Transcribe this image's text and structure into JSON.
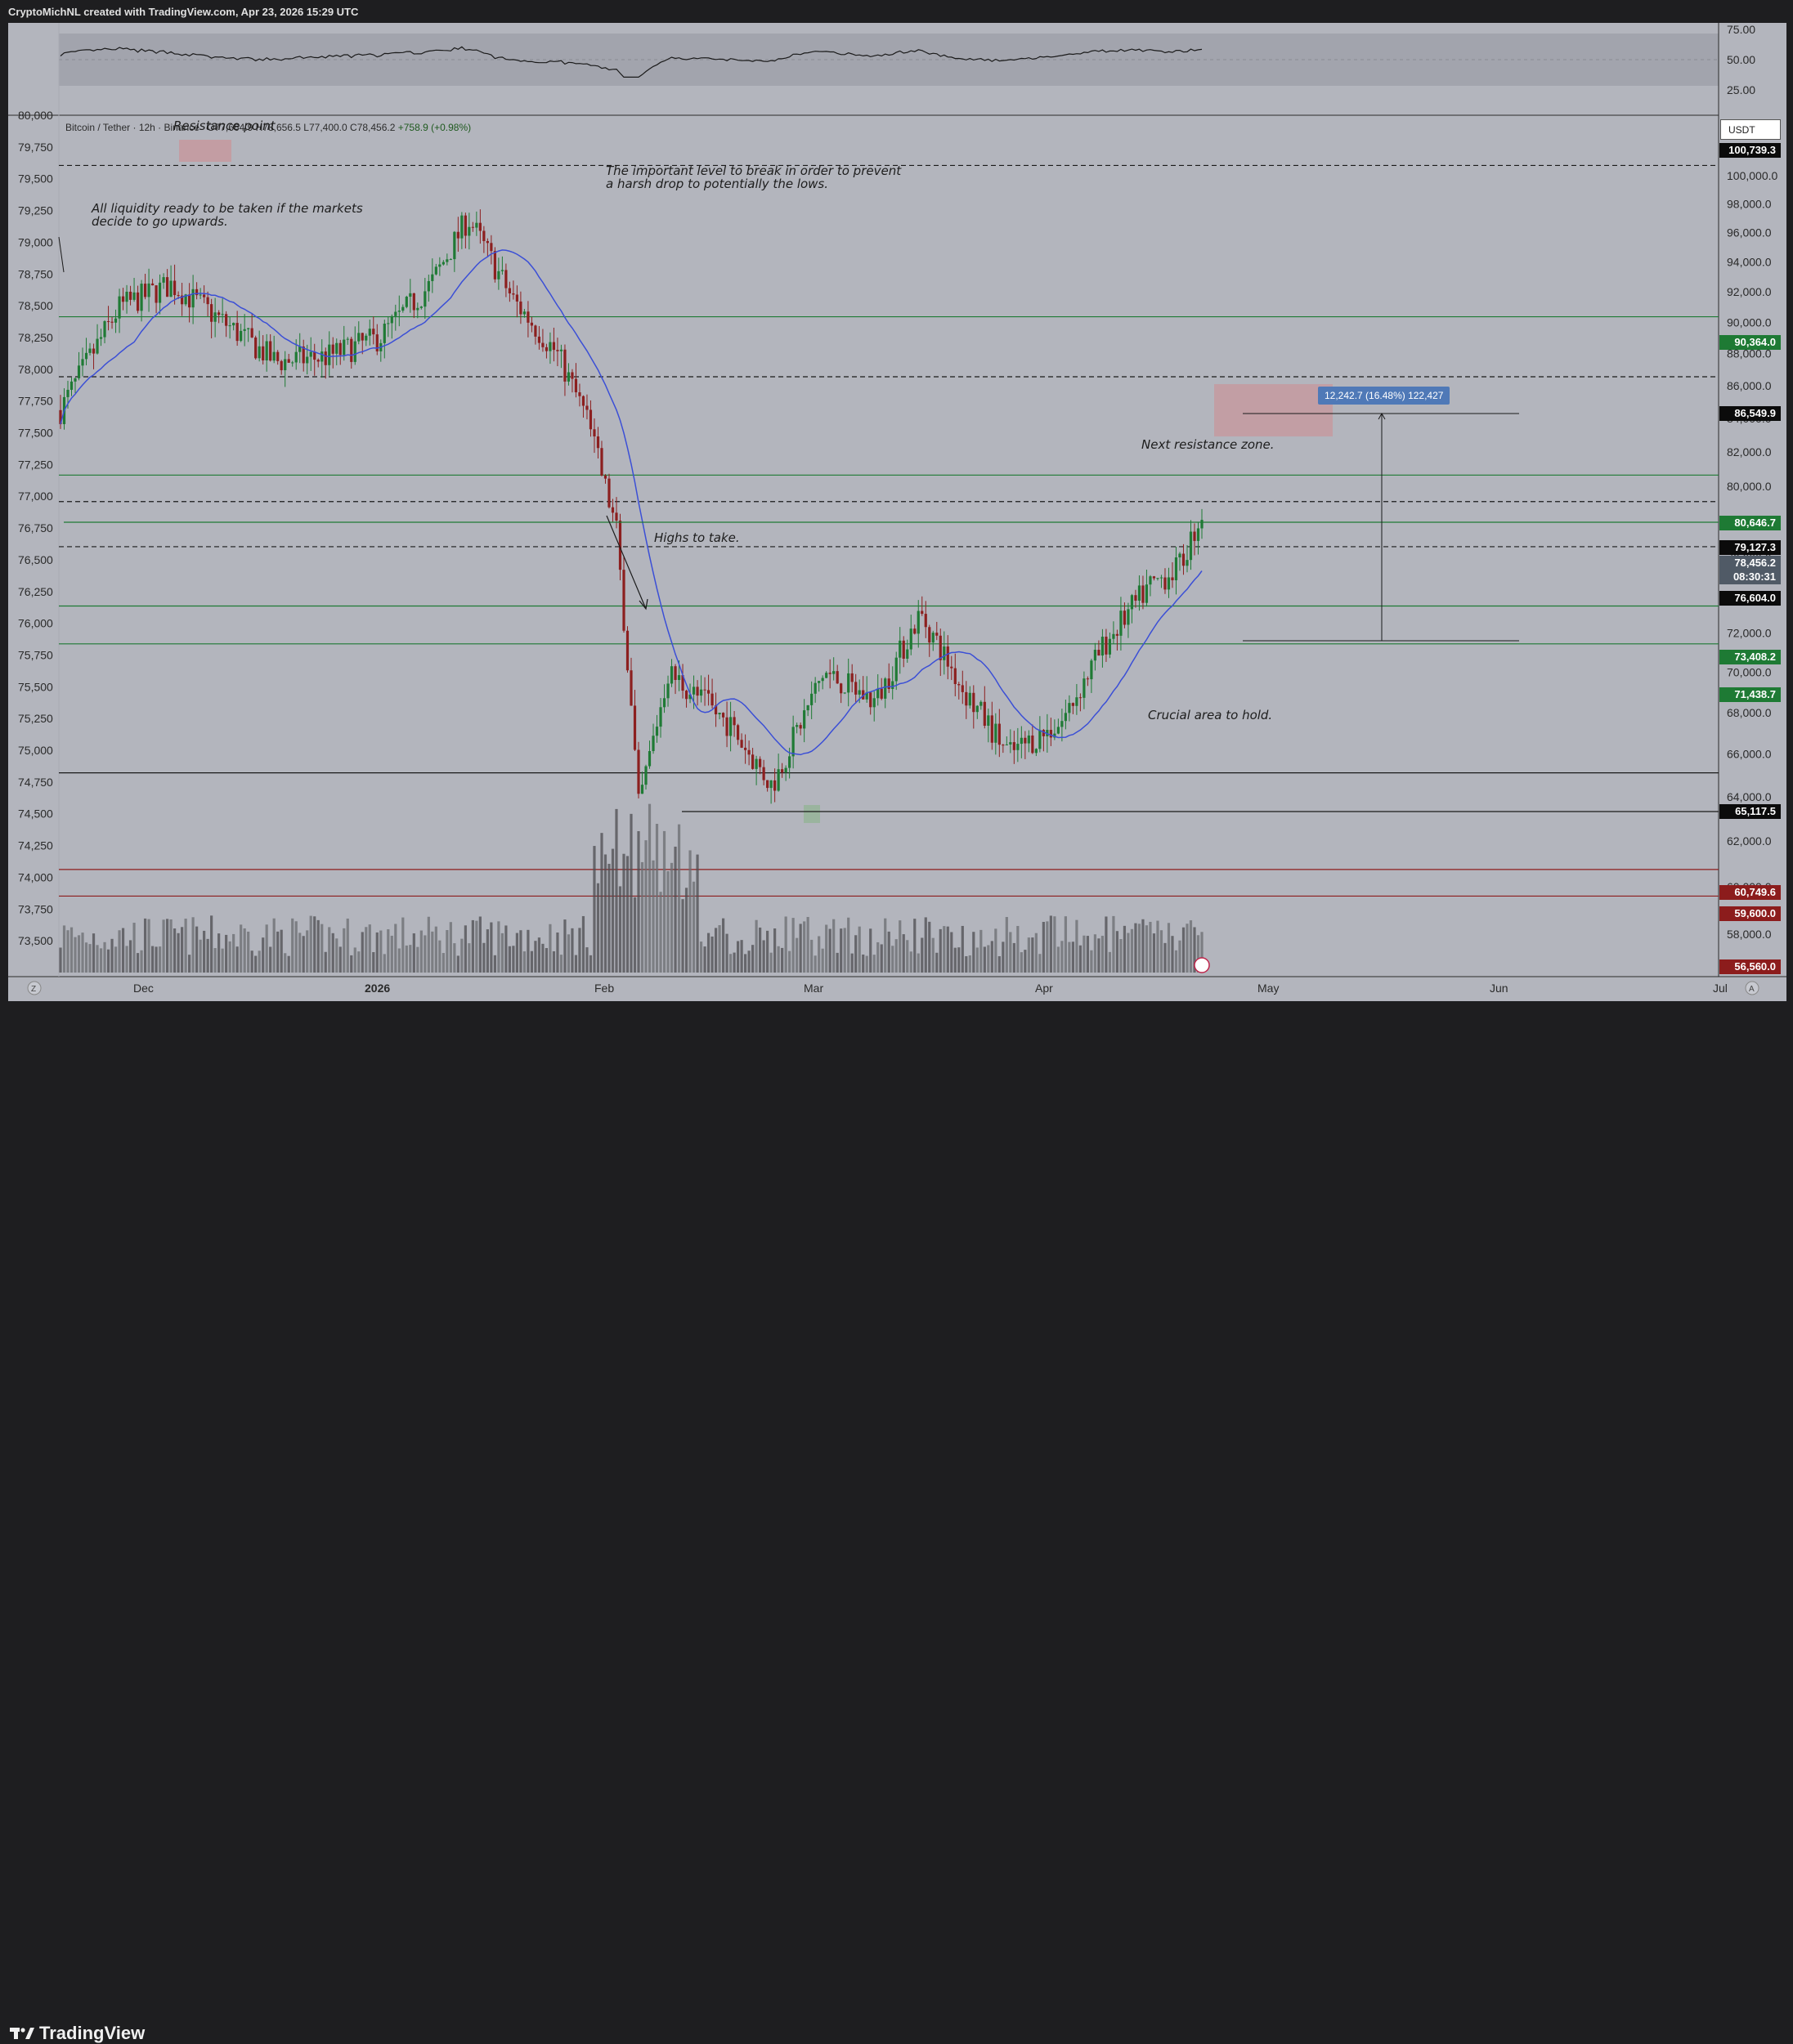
{
  "header": {
    "caption": "CryptoMichNL created with TradingView.com, Apr 23, 2026 15:29 UTC"
  },
  "brand": {
    "name": "TradingView"
  },
  "symbol": {
    "name": "Bitcoin / Tether · 12h · Binance",
    "ohlc": "O77,664.9  H78,656.5  L77,400.0  C78,456.2",
    "change": "+758.9 (+0.98%)"
  },
  "currency": "USDT",
  "rsi_axis": [
    "75.00",
    "50.00",
    "25.00"
  ],
  "left_axis": [
    "80,000",
    "79,750",
    "79,500",
    "79,250",
    "79,000",
    "78,750",
    "78,500",
    "78,250",
    "78,000",
    "77,750",
    "77,500",
    "77,250",
    "77,000",
    "76,750",
    "76,500",
    "76,250",
    "76,000",
    "75,750",
    "75,500",
    "75,250",
    "75,000",
    "74,750",
    "74,500",
    "74,250",
    "74,000",
    "73,750",
    "73,500"
  ],
  "right_axis": [
    "100,000.0",
    "98,000.0",
    "96,000.0",
    "94,000.0",
    "92,000.0",
    "90,000.0",
    "88,000.0",
    "86,000.0",
    "84,000.0",
    "82,000.0",
    "80,000.0",
    "78,000.0",
    "76,000.0",
    "74,000.0",
    "72,000.0",
    "70,000.0",
    "68,000.0",
    "66,000.0",
    "64,000.0",
    "62,000.0",
    "60,000.0",
    "58,000.0"
  ],
  "time_axis": [
    "Dec",
    "2026",
    "Feb",
    "Mar",
    "Apr",
    "May",
    "Jun",
    "Jul"
  ],
  "price_labels": [
    {
      "text": "100,739.3",
      "color": "#0b0b0b"
    },
    {
      "text": "90,364.0",
      "color": "#1e7a34"
    },
    {
      "text": "86,549.9",
      "color": "#0b0b0b"
    },
    {
      "text": "80,646.7",
      "color": "#1e7a34"
    },
    {
      "text": "79,127.3",
      "color": "#0b0b0b"
    },
    {
      "text": "78,456.2",
      "color": "#505a66"
    },
    {
      "text": "08:30:31",
      "color": "#505a66"
    },
    {
      "text": "76,604.0",
      "color": "#0b0b0b"
    },
    {
      "text": "73,408.2",
      "color": "#1e7a34"
    },
    {
      "text": "71,438.7",
      "color": "#1e7a34"
    },
    {
      "text": "65,117.5",
      "color": "#0b0b0b"
    },
    {
      "text": "60,749.6",
      "color": "#8c1c1c"
    },
    {
      "text": "59,600.0",
      "color": "#8c1c1c"
    },
    {
      "text": "56,560.0",
      "color": "#8c1c1c"
    }
  ],
  "annotations": {
    "resistance_point": "Resistance point",
    "liquidity": "All liquidity ready to be taken if the markets\ndecide to go upwards.",
    "important_level": "The important level to break in order to prevent\na harsh drop to potentially the lows.",
    "highs": "Highs to take.",
    "next_resistance": "Next resistance zone.",
    "crucial": "Crucial area to hold."
  },
  "measure": {
    "label": "12,242.7 (16.48%) 122,427"
  },
  "colors": {
    "up": "#1f7a35",
    "down": "#8c1f1f",
    "ma": "#3b4fd6",
    "panel": "#b3b5bd",
    "support": "#1e7a34",
    "resistance": "#8c1c1c"
  },
  "chart_data": {
    "type": "candlestick",
    "title": "Bitcoin / Tether · 12h",
    "price_unit": "USDT",
    "ylim": [
      56560,
      101500
    ],
    "levels": [
      {
        "value": 100739.3,
        "style": "dashed"
      },
      {
        "value": 90364.0,
        "style": "solid",
        "role": "support"
      },
      {
        "value": 86549.9,
        "style": "dashed"
      },
      {
        "value": 80646.7,
        "style": "solid",
        "role": "support"
      },
      {
        "value": 79127.3,
        "style": "dashed"
      },
      {
        "value": 76604.0,
        "style": "dashed"
      },
      {
        "value": 73408.2,
        "style": "solid",
        "role": "support"
      },
      {
        "value": 71438.7,
        "style": "solid",
        "role": "support"
      },
      {
        "value": 65117.5,
        "style": "solid"
      },
      {
        "value": 60749.6,
        "style": "solid",
        "role": "resistance"
      },
      {
        "value": 59600.0,
        "style": "solid",
        "role": "resistance"
      }
    ],
    "price_path": [
      {
        "date": "2025-11-20",
        "close": 84500
      },
      {
        "date": "2025-11-28",
        "close": 91000
      },
      {
        "date": "2025-12-05",
        "close": 92500
      },
      {
        "date": "2025-12-12",
        "close": 90000
      },
      {
        "date": "2025-12-19",
        "close": 87500
      },
      {
        "date": "2025-12-26",
        "close": 87800
      },
      {
        "date": "2026-01-02",
        "close": 89000
      },
      {
        "date": "2026-01-09",
        "close": 92500
      },
      {
        "date": "2026-01-14",
        "close": 97000
      },
      {
        "date": "2026-01-20",
        "close": 91500
      },
      {
        "date": "2026-01-26",
        "close": 88000
      },
      {
        "date": "2026-01-30",
        "close": 84000
      },
      {
        "date": "2026-02-03",
        "close": 77500
      },
      {
        "date": "2026-02-06",
        "close": 63500
      },
      {
        "date": "2026-02-10",
        "close": 70000
      },
      {
        "date": "2026-02-18",
        "close": 67500
      },
      {
        "date": "2026-02-24",
        "close": 64500
      },
      {
        "date": "2026-03-03",
        "close": 70000
      },
      {
        "date": "2026-03-10",
        "close": 68500
      },
      {
        "date": "2026-03-16",
        "close": 73000
      },
      {
        "date": "2026-03-22",
        "close": 69000
      },
      {
        "date": "2026-03-28",
        "close": 66000
      },
      {
        "date": "2026-04-04",
        "close": 67500
      },
      {
        "date": "2026-04-10",
        "close": 71500
      },
      {
        "date": "2026-04-16",
        "close": 74500
      },
      {
        "date": "2026-04-20",
        "close": 75500
      },
      {
        "date": "2026-04-23",
        "close": 78456.2
      }
    ],
    "last_price": 78456.2,
    "rsi": {
      "levels": [
        75,
        50,
        25
      ],
      "last": 70
    }
  }
}
